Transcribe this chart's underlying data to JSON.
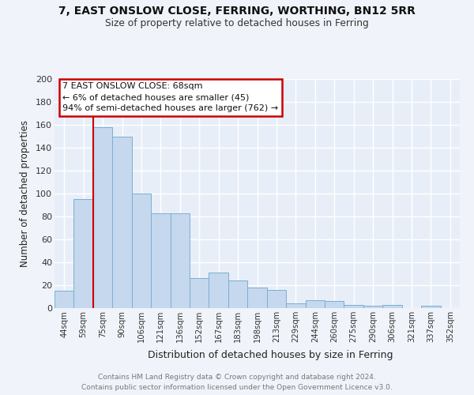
{
  "title": "7, EAST ONSLOW CLOSE, FERRING, WORTHING, BN12 5RR",
  "subtitle": "Size of property relative to detached houses in Ferring",
  "xlabel": "Distribution of detached houses by size in Ferring",
  "ylabel": "Number of detached properties",
  "bar_labels": [
    "44sqm",
    "59sqm",
    "75sqm",
    "90sqm",
    "106sqm",
    "121sqm",
    "136sqm",
    "152sqm",
    "167sqm",
    "183sqm",
    "198sqm",
    "213sqm",
    "229sqm",
    "244sqm",
    "260sqm",
    "275sqm",
    "290sqm",
    "306sqm",
    "321sqm",
    "337sqm",
    "352sqm"
  ],
  "bar_values": [
    15,
    95,
    158,
    150,
    100,
    83,
    83,
    26,
    31,
    24,
    18,
    16,
    4,
    7,
    6,
    3,
    2,
    3,
    0,
    2,
    0
  ],
  "bar_color": "#c5d8ed",
  "bar_edgecolor": "#7aafd4",
  "fig_bg_color": "#f0f4fa",
  "axes_bg_color": "#e8eef8",
  "grid_color": "#ffffff",
  "ylim": [
    0,
    200
  ],
  "yticks": [
    0,
    20,
    40,
    60,
    80,
    100,
    120,
    140,
    160,
    180,
    200
  ],
  "red_line_x": 1.5,
  "annotation_title": "7 EAST ONSLOW CLOSE: 68sqm",
  "annotation_line1": "← 6% of detached houses are smaller (45)",
  "annotation_line2": "94% of semi-detached houses are larger (762) →",
  "annotation_box_color": "#ffffff",
  "annotation_border_color": "#cc0000",
  "red_line_color": "#cc0000",
  "footer1": "Contains HM Land Registry data © Crown copyright and database right 2024.",
  "footer2": "Contains public sector information licensed under the Open Government Licence v3.0."
}
